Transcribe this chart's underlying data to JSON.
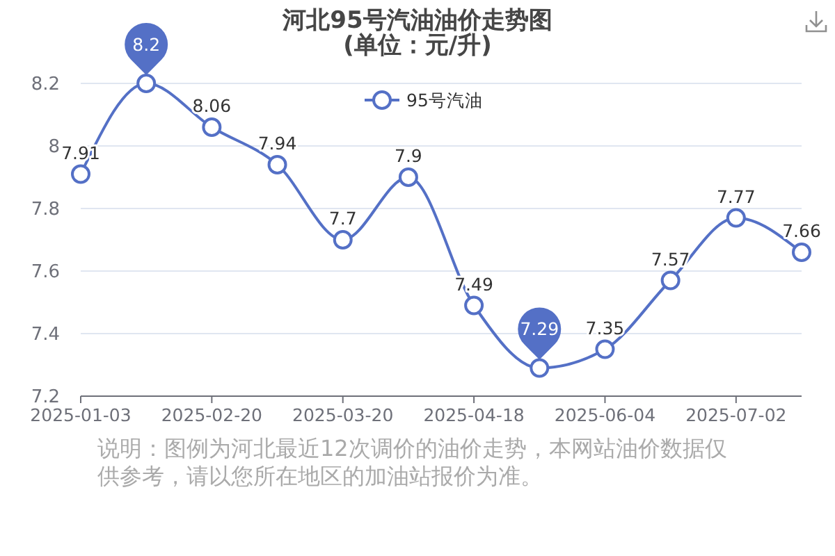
{
  "chart_data": {
    "type": "line",
    "title": "河北95号汽油油价走势图",
    "subtitle": "(单位：元/升)",
    "categories": [
      "2025-01-03",
      null,
      "2025-02-20",
      null,
      "2025-03-20",
      null,
      "2025-04-18",
      null,
      "2025-06-04",
      null,
      "2025-07-02",
      null
    ],
    "series": [
      {
        "name": "95号汽油",
        "color": "#5470c6",
        "values": [
          7.91,
          8.2,
          8.06,
          7.94,
          7.7,
          7.9,
          7.49,
          7.29,
          7.35,
          7.57,
          7.77,
          7.66
        ],
        "value_labels": [
          "7.91",
          null,
          "8.06",
          "7.94",
          "7.7",
          "7.9",
          "7.49",
          null,
          "7.35",
          "7.57",
          "7.77",
          "7.66"
        ]
      }
    ],
    "ylim": [
      7.2,
      8.2
    ],
    "yticks": [
      7.2,
      7.4,
      7.6,
      7.8,
      8,
      8.2
    ],
    "grid": "y",
    "legend": "top",
    "marker": "circle",
    "line_style": "solid",
    "annotations": [
      {
        "text": "8.2",
        "y": 8.2
      },
      {
        "text": "7.29",
        "y": 7.29
      },
      "说明：图例为河北最近12次调价的油价走势，本网站油价数据仅供参考，请以您所在地区的加油站报价为准。"
    ]
  }
}
